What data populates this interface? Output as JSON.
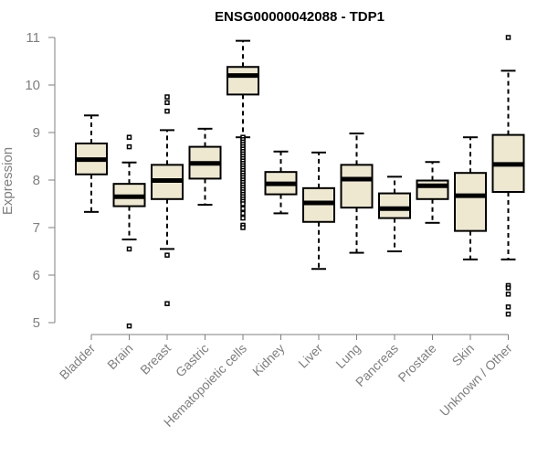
{
  "chart_data": {
    "type": "boxplot",
    "title": "ENSG00000042088 - TDP1",
    "ylabel": "Expression",
    "xlabel": "",
    "ylim": [
      4.8,
      11.1
    ],
    "yticks": [
      5,
      6,
      7,
      8,
      9,
      10,
      11
    ],
    "grid": false,
    "colors": {
      "box_fill": "#eee8d0",
      "box_stroke": "#000000",
      "axis": "#7f7f7f"
    },
    "categories": [
      "Bladder",
      "Brain",
      "Breast",
      "Gastric",
      "Hematopoietic cells",
      "Kidney",
      "Liver",
      "Lung",
      "Pancreas",
      "Prostate",
      "Skin",
      "Unknown / Other"
    ],
    "boxes": [
      {
        "category": "Bladder",
        "min": 7.33,
        "q1": 8.12,
        "median": 8.43,
        "q3": 8.77,
        "max": 9.36,
        "outliers": []
      },
      {
        "category": "Brain",
        "min": 6.75,
        "q1": 7.45,
        "median": 7.65,
        "q3": 7.92,
        "max": 8.37,
        "outliers": [
          8.9,
          8.7,
          6.55,
          4.93
        ]
      },
      {
        "category": "Breast",
        "min": 6.55,
        "q1": 7.6,
        "median": 7.99,
        "q3": 8.32,
        "max": 9.05,
        "outliers": [
          9.75,
          9.63,
          9.45,
          6.42,
          5.4
        ]
      },
      {
        "category": "Gastric",
        "min": 7.48,
        "q1": 8.03,
        "median": 8.35,
        "q3": 8.7,
        "max": 9.08,
        "outliers": []
      },
      {
        "category": "Hematopoietic cells",
        "min": 8.9,
        "q1": 9.8,
        "median": 10.2,
        "q3": 10.38,
        "max": 10.93,
        "outliers": [
          8.9,
          8.85,
          8.8,
          8.75,
          8.7,
          8.65,
          8.6,
          8.55,
          8.5,
          8.45,
          8.4,
          8.35,
          8.3,
          8.25,
          8.2,
          8.15,
          8.1,
          8.05,
          8.0,
          7.95,
          7.9,
          7.85,
          7.8,
          7.75,
          7.7,
          7.65,
          7.6,
          7.55,
          7.5,
          7.4,
          7.3,
          7.2,
          7.05,
          7.0
        ]
      },
      {
        "category": "Kidney",
        "min": 7.3,
        "q1": 7.7,
        "median": 7.92,
        "q3": 8.17,
        "max": 8.6,
        "outliers": []
      },
      {
        "category": "Liver",
        "min": 6.13,
        "q1": 7.12,
        "median": 7.52,
        "q3": 7.83,
        "max": 8.58,
        "outliers": []
      },
      {
        "category": "Lung",
        "min": 6.47,
        "q1": 7.42,
        "median": 8.02,
        "q3": 8.32,
        "max": 8.98,
        "outliers": []
      },
      {
        "category": "Pancreas",
        "min": 6.5,
        "q1": 7.2,
        "median": 7.4,
        "q3": 7.72,
        "max": 8.07,
        "outliers": []
      },
      {
        "category": "Prostate",
        "min": 7.1,
        "q1": 7.6,
        "median": 7.88,
        "q3": 7.99,
        "max": 8.38,
        "outliers": []
      },
      {
        "category": "Skin",
        "min": 6.33,
        "q1": 6.93,
        "median": 7.67,
        "q3": 8.15,
        "max": 8.9,
        "outliers": []
      },
      {
        "category": "Unknown / Other",
        "min": 6.33,
        "q1": 7.75,
        "median": 8.33,
        "q3": 8.95,
        "max": 10.3,
        "outliers": [
          11.0,
          5.78,
          5.73,
          5.6,
          5.33,
          5.18
        ]
      }
    ]
  }
}
